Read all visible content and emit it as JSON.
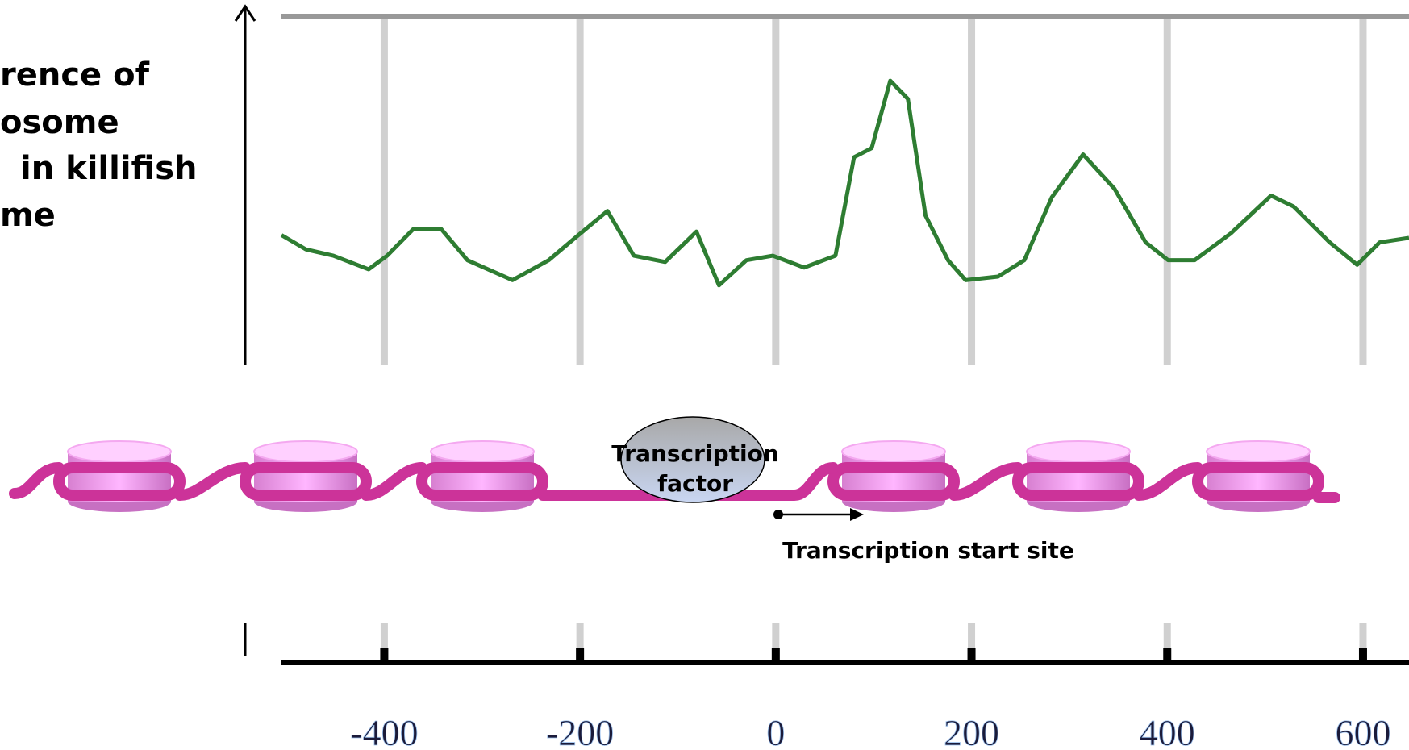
{
  "chart_data": {
    "type": "line",
    "title_lines": [
      "rence of",
      "osome",
      "in killifish",
      "me"
    ],
    "x": [
      -505,
      -480,
      -452,
      -416,
      -397,
      -370,
      -342,
      -315,
      -269,
      -232,
      -205,
      -172,
      -145,
      -113,
      -81,
      -58,
      -30,
      -3,
      29,
      61,
      80,
      98,
      117,
      135,
      153,
      176,
      194,
      227,
      254,
      282,
      314,
      346,
      378,
      401,
      428,
      465,
      506,
      529,
      566,
      594,
      617,
      647
    ],
    "series": [
      {
        "color": "#2e7d32",
        "values": [
          37.3,
          33.2,
          31.4,
          27.5,
          31.4,
          39.1,
          39.1,
          30.1,
          24.4,
          30.1,
          36.5,
          44.2,
          31.4,
          29.6,
          38.3,
          22.9,
          30.1,
          31.4,
          28.0,
          31.4,
          59.6,
          62.2,
          81.5,
          76.3,
          42.9,
          30.1,
          24.4,
          25.4,
          30.1,
          48.1,
          60.4,
          50.6,
          35.2,
          30.1,
          30.1,
          37.8,
          48.6,
          45.5,
          35.2,
          28.8,
          35.2,
          36.5
        ]
      }
    ],
    "xlim": [
      -505,
      647
    ],
    "ylim": [
      0,
      100
    ],
    "xticks": [
      -400,
      -200,
      0,
      200,
      400,
      600
    ],
    "grid": true,
    "tf_label": [
      "Transcription",
      "factor"
    ],
    "tss_label": "Transcription start site"
  }
}
